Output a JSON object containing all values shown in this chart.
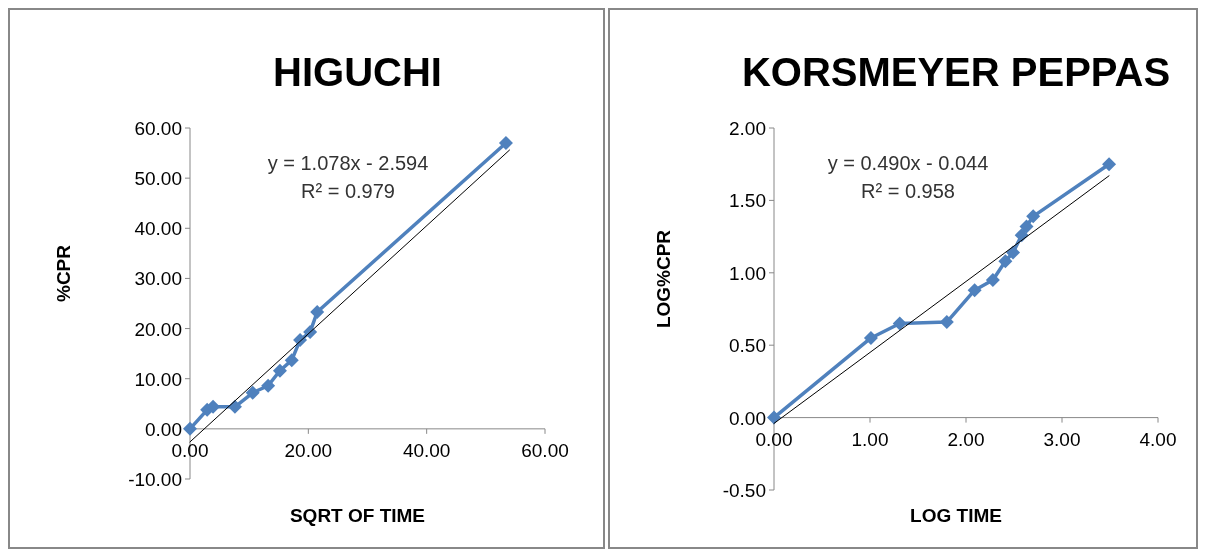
{
  "chart_data": [
    {
      "type": "line",
      "title": "HIGUCHI",
      "xlabel": "SQRT OF TIME",
      "ylabel": "%CPR",
      "annotations": [
        "y = 1.078x - 2.594",
        "R² = 0.979"
      ],
      "xlim": [
        0,
        60
      ],
      "xticks": [
        {
          "value": 0,
          "label": "0.00"
        },
        {
          "value": 20,
          "label": "20.00"
        },
        {
          "value": 40,
          "label": "40.00"
        },
        {
          "value": 60,
          "label": "60.00"
        }
      ],
      "ylim": [
        -10,
        60
      ],
      "yticks": [
        {
          "value": -10,
          "label": "-10.00"
        },
        {
          "value": 0,
          "label": "0.00"
        },
        {
          "value": 10,
          "label": "10.00"
        },
        {
          "value": 20,
          "label": "20.00"
        },
        {
          "value": 30,
          "label": "30.00"
        },
        {
          "value": 40,
          "label": "40.00"
        },
        {
          "value": 50,
          "label": "50.00"
        },
        {
          "value": 60,
          "label": "60.00"
        }
      ],
      "grid": false,
      "series": [
        {
          "color": "#4f81bd",
          "marker": "diamond",
          "line_style": "solid",
          "x": [
            0,
            2.9,
            3.9,
            7.6,
            10.6,
            13.2,
            15.2,
            17.2,
            18.6,
            20.3,
            21.5,
            53.4
          ],
          "values": [
            0,
            3.8,
            4.4,
            4.4,
            7.2,
            8.6,
            11.6,
            13.7,
            17.7,
            19.3,
            23.3,
            57
          ]
        },
        {
          "color": "#000000",
          "marker": "none",
          "line_style": "solid",
          "x": [
            0,
            54
          ],
          "values": [
            -2.6,
            55.6
          ]
        }
      ]
    },
    {
      "type": "line",
      "title": "KORSMEYER PEPPAS",
      "xlabel": "LOG TIME",
      "ylabel": "LOG%CPR",
      "annotations": [
        "y = 0.490x - 0.044",
        "R² = 0.958"
      ],
      "xlim": [
        0,
        4
      ],
      "xticks": [
        {
          "value": 0,
          "label": "0.00"
        },
        {
          "value": 1,
          "label": "1.00"
        },
        {
          "value": 2,
          "label": "2.00"
        },
        {
          "value": 3,
          "label": "3.00"
        },
        {
          "value": 4,
          "label": "4.00"
        }
      ],
      "ylim": [
        -0.5,
        2
      ],
      "yticks": [
        {
          "value": -0.5,
          "label": "-0.50"
        },
        {
          "value": 0,
          "label": "0.00"
        },
        {
          "value": 0.5,
          "label": "0.50"
        },
        {
          "value": 1,
          "label": "1.00"
        },
        {
          "value": 1.5,
          "label": "1.50"
        },
        {
          "value": 2,
          "label": "2.00"
        }
      ],
      "grid": false,
      "series": [
        {
          "color": "#4f81bd",
          "marker": "diamond",
          "line_style": "solid",
          "x": [
            0,
            1.01,
            1.31,
            1.8,
            2.09,
            2.28,
            2.41,
            2.49,
            2.58,
            2.63,
            2.7,
            3.49
          ],
          "values": [
            0,
            0.55,
            0.65,
            0.66,
            0.88,
            0.95,
            1.08,
            1.14,
            1.26,
            1.32,
            1.39,
            1.75
          ]
        },
        {
          "color": "#000000",
          "marker": "none",
          "line_style": "solid",
          "x": [
            0,
            3.49
          ],
          "values": [
            -0.04,
            1.67
          ]
        }
      ]
    }
  ]
}
